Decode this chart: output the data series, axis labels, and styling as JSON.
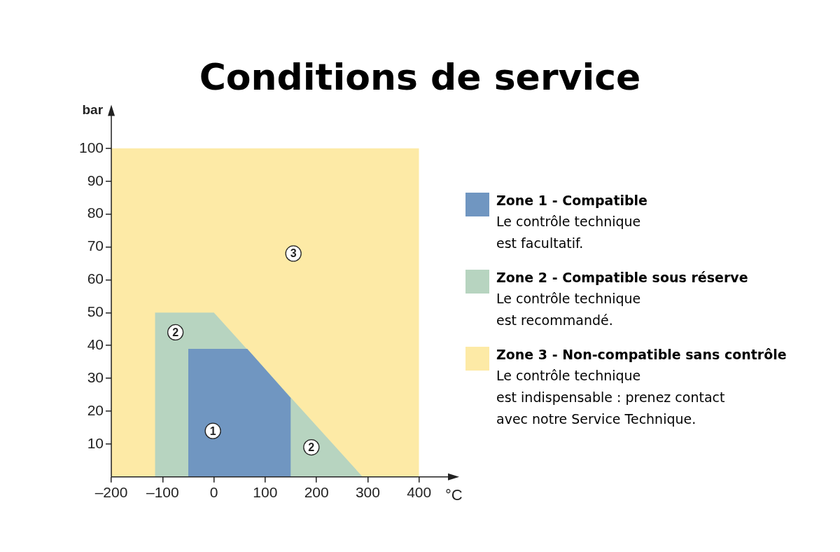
{
  "chart_data": {
    "type": "area",
    "title": "Conditions de service",
    "xlabel": "°C",
    "ylabel": "bar",
    "series": [
      {
        "name": "Zone 1 - Compatible",
        "color": "#7096c1",
        "x": [
          -50,
          -50,
          65,
          150,
          150
        ],
        "values": [
          0,
          39,
          39,
          24,
          0
        ]
      },
      {
        "name": "Zone 2 - Compatible sous réserve",
        "color": "#b7d4c0",
        "x": [
          -115,
          -115,
          0,
          290
        ],
        "values": [
          0,
          50,
          50,
          0
        ]
      },
      {
        "name": "Zone 3 - Non-compatible sans contrôle",
        "color": "#fdeaa6",
        "x": [
          -200,
          -200,
          400,
          400
        ],
        "values": [
          0,
          100,
          100,
          0
        ]
      }
    ],
    "xlim": [
      -200,
      470
    ],
    "ylim": [
      0,
      112
    ],
    "xticks": [
      {
        "value": -200,
        "label": "–200"
      },
      {
        "value": -100,
        "label": "–100"
      },
      0,
      100,
      200,
      300,
      400
    ],
    "yticks": [
      10,
      20,
      30,
      40,
      50,
      60,
      70,
      80,
      90,
      100
    ],
    "grid": false,
    "legend": "right",
    "annotations": [
      "Le contrôle technique\nest facultatif.",
      "Le contrôle technique\nest recommandé.",
      "Le contrôle technique\nest indispensable : prenez contact\navec notre Service Technique.",
      {
        "text": "3",
        "x": 155,
        "y": 68
      },
      {
        "text": "2",
        "x": -75,
        "y": 44
      },
      {
        "text": "1",
        "x": -2,
        "y": 14
      },
      {
        "text": "2",
        "x": 190,
        "y": 9
      }
    ]
  }
}
